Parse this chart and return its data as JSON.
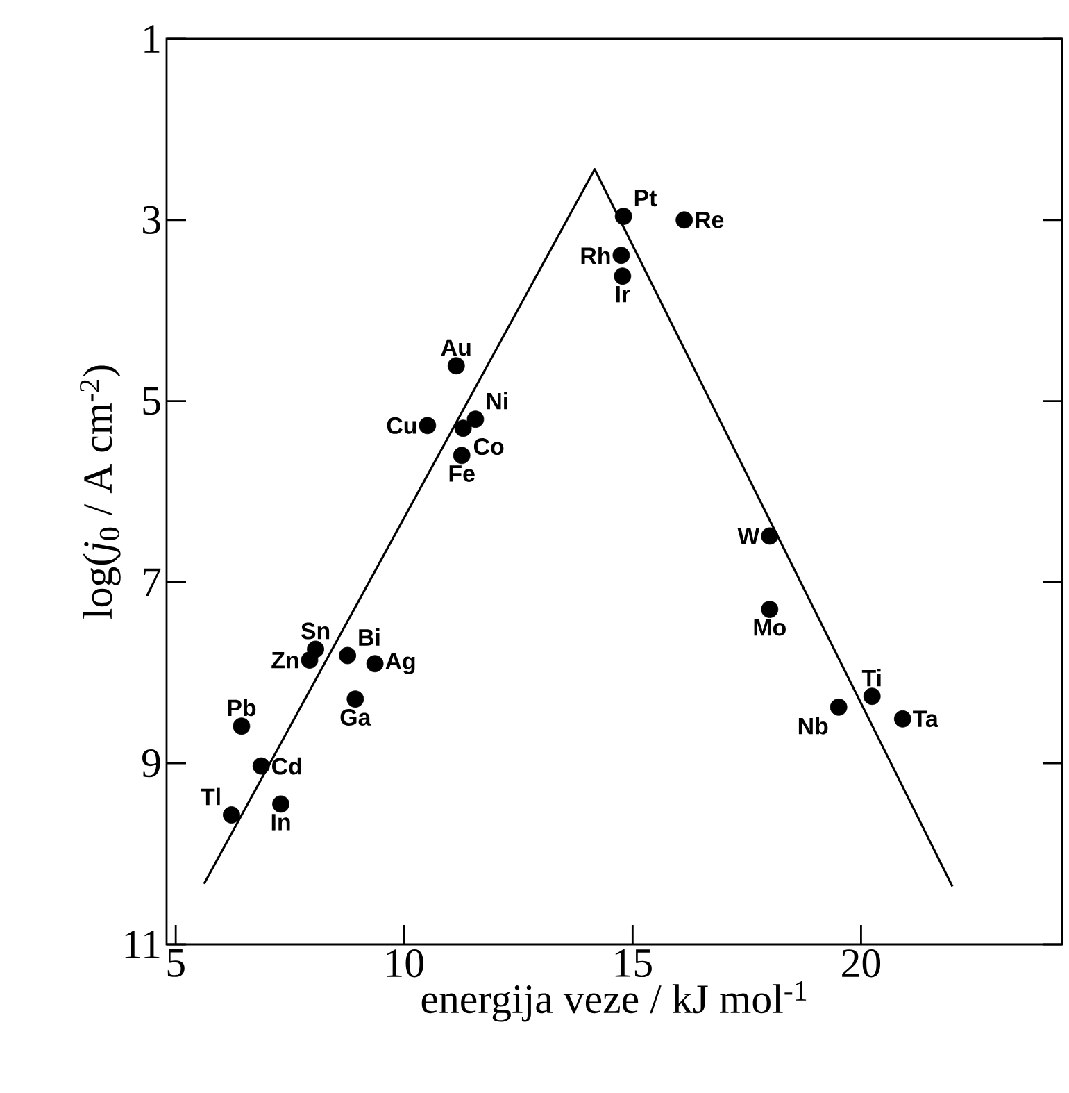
{
  "chart_data": {
    "type": "scatter",
    "xlabel": "energija veze / kJ mol$^{-1}$",
    "ylabel": "log(*j*$_{0}$ / A cm$^{-2}$)",
    "xlim": [
      4.8,
      24.4
    ],
    "ylim": [
      11,
      1
    ],
    "xticks": [
      5,
      10,
      15,
      20
    ],
    "yticks": [
      1,
      3,
      5,
      7,
      9,
      11
    ],
    "series": [
      {
        "marker": "circle",
        "color": "#000000",
        "x": [
          14.8,
          14.75,
          14.78,
          16.13,
          11.14,
          10.51,
          11.56,
          11.29,
          11.26,
          18.0,
          18.0,
          20.24,
          19.51,
          20.91,
          8.06,
          7.93,
          8.76,
          9.36,
          8.93,
          6.44,
          6.87,
          6.22,
          7.3
        ],
        "values": [
          2.96,
          3.39,
          3.62,
          3.0,
          4.61,
          5.27,
          5.2,
          5.3,
          5.6,
          6.49,
          7.3,
          8.26,
          8.38,
          8.51,
          7.74,
          7.86,
          7.81,
          7.9,
          8.29,
          8.59,
          9.03,
          9.57,
          9.45
        ]
      },
      {
        "type": "line",
        "color": "#000000",
        "x": [
          5.62,
          14.17,
          22.0
        ],
        "values": [
          10.33,
          2.44,
          10.36
        ]
      }
    ],
    "annotations": [
      {
        "text": "Pt",
        "x": 14.8,
        "y": 2.96
      },
      {
        "text": "Rh",
        "x": 14.75,
        "y": 3.39
      },
      {
        "text": "Ir",
        "x": 14.78,
        "y": 3.62
      },
      {
        "text": "Re",
        "x": 16.13,
        "y": 3.0
      },
      {
        "text": "Au",
        "x": 11.14,
        "y": 4.61
      },
      {
        "text": "Cu",
        "x": 10.51,
        "y": 5.27
      },
      {
        "text": "Ni",
        "x": 11.56,
        "y": 5.2
      },
      {
        "text": "Co",
        "x": 11.29,
        "y": 5.3
      },
      {
        "text": "Fe",
        "x": 11.26,
        "y": 5.6
      },
      {
        "text": "W",
        "x": 18.0,
        "y": 6.49
      },
      {
        "text": "Mo",
        "x": 18.0,
        "y": 7.3
      },
      {
        "text": "Ti",
        "x": 20.24,
        "y": 8.26
      },
      {
        "text": "Nb",
        "x": 19.51,
        "y": 8.38
      },
      {
        "text": "Ta",
        "x": 20.91,
        "y": 8.51
      },
      {
        "text": "Sn",
        "x": 8.06,
        "y": 7.74
      },
      {
        "text": "Zn",
        "x": 7.93,
        "y": 7.86
      },
      {
        "text": "Bi",
        "x": 8.76,
        "y": 7.81
      },
      {
        "text": "Ag",
        "x": 9.36,
        "y": 7.9
      },
      {
        "text": "Ga",
        "x": 8.93,
        "y": 8.29
      },
      {
        "text": "Pb",
        "x": 6.44,
        "y": 8.59
      },
      {
        "text": "Cd",
        "x": 6.87,
        "y": 9.03
      },
      {
        "text": "Tl",
        "x": 6.22,
        "y": 9.57
      },
      {
        "text": "In",
        "x": 7.3,
        "y": 9.45
      }
    ]
  }
}
